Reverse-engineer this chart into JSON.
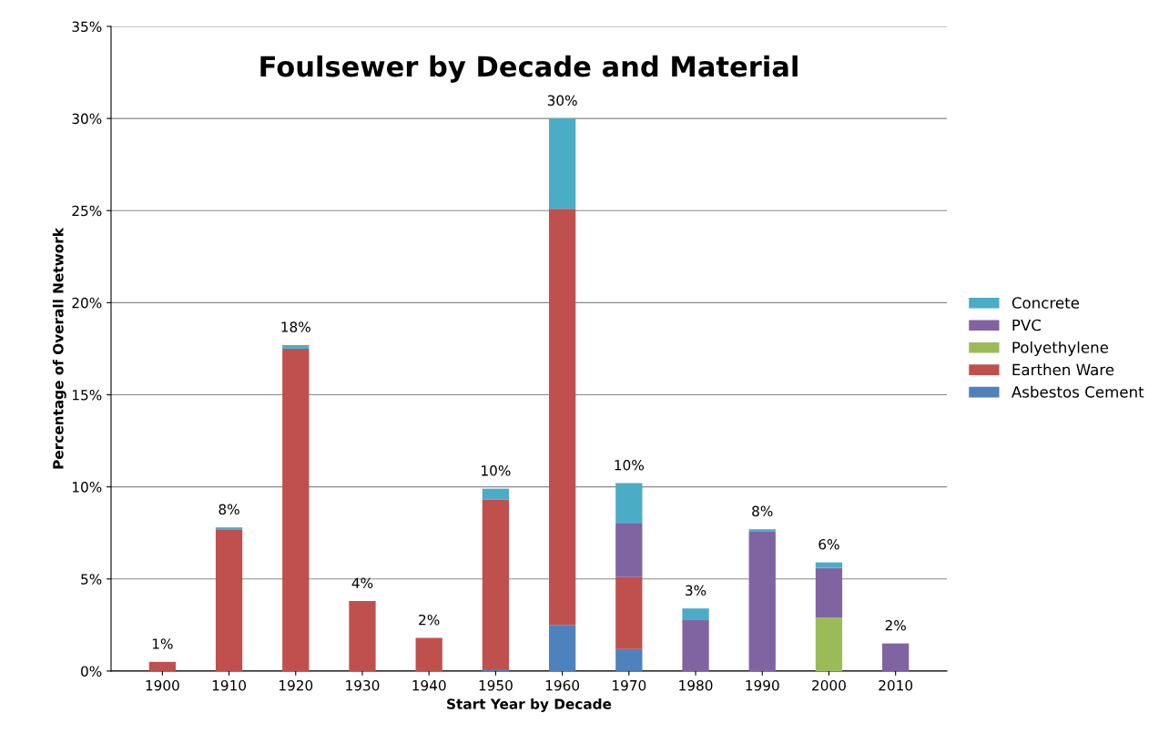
{
  "chart_data": {
    "type": "bar",
    "title": "Foulsewer by Decade and Material",
    "xlabel": "Start Year by Decade",
    "ylabel": "Percentage of Overall Network",
    "categories": [
      "1900",
      "1910",
      "1920",
      "1930",
      "1940",
      "1950",
      "1960",
      "1970",
      "1980",
      "1990",
      "2000",
      "2010"
    ],
    "stacked": true,
    "series": [
      {
        "name": "Asbestos Cement",
        "color": "#4f81bd",
        "values": [
          0,
          0,
          0,
          0,
          0,
          0.1,
          2.5,
          1.2,
          0,
          0,
          0,
          0
        ]
      },
      {
        "name": "Earthen Ware",
        "color": "#c0504d",
        "values": [
          0.5,
          7.7,
          17.5,
          3.8,
          1.8,
          9.2,
          22.6,
          3.9,
          0,
          0,
          0,
          0
        ]
      },
      {
        "name": "Polyethylene",
        "color": "#9bbb59",
        "values": [
          0,
          0,
          0,
          0,
          0,
          0,
          0,
          0,
          0,
          0,
          2.9,
          0
        ]
      },
      {
        "name": "PVC",
        "color": "#8064a2",
        "values": [
          0,
          0,
          0,
          0,
          0,
          0,
          0,
          2.9,
          2.8,
          7.6,
          2.7,
          1.5
        ]
      },
      {
        "name": "Concrete",
        "color": "#4bacc6",
        "values": [
          0,
          0.1,
          0.2,
          0,
          0,
          0.6,
          4.9,
          2.2,
          0.6,
          0.1,
          0.3,
          0
        ]
      }
    ],
    "totals": [
      "1%",
      "8%",
      "18%",
      "4%",
      "2%",
      "10%",
      "30%",
      "10%",
      "3%",
      "8%",
      "6%",
      "2%"
    ],
    "ylim": [
      0,
      35
    ],
    "yticks": [
      {
        "value": 0,
        "label": "0%"
      },
      {
        "value": 5,
        "label": "5%"
      },
      {
        "value": 10,
        "label": "10%"
      },
      {
        "value": 15,
        "label": "15%"
      },
      {
        "value": 20,
        "label": "20%"
      },
      {
        "value": 25,
        "label": "25%"
      },
      {
        "value": 30,
        "label": "30%"
      },
      {
        "value": 35,
        "label": "35%"
      }
    ],
    "grid": "y",
    "legend": "right"
  }
}
